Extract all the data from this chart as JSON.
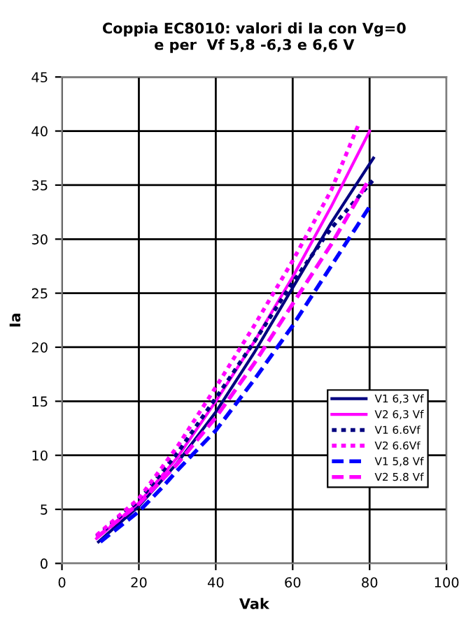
{
  "chart_data": {
    "type": "line",
    "title": "Coppia EC8010: valori di Ia con Vg=0\ne per  Vf 5,8 -6,3 e 6,6 V",
    "xlabel": "Vak",
    "ylabel": "Ia",
    "xlim": [
      0,
      100
    ],
    "xticks": [
      0,
      20,
      40,
      60,
      80,
      100
    ],
    "ylim": [
      0,
      45
    ],
    "yticks": [
      0,
      5,
      10,
      15,
      20,
      25,
      30,
      35,
      40,
      45
    ],
    "grid": true,
    "legend": "lower right",
    "marker": "none",
    "series": [
      {
        "name": "V1 6,3 Vf",
        "color": "#000080",
        "line_style": "solid",
        "x": [
          9.5,
          20,
          30,
          40,
          50,
          60,
          70,
          81
        ],
        "values": [
          2,
          5.3,
          9.3,
          14,
          19.5,
          25.5,
          31.5,
          37.5
        ]
      },
      {
        "name": "V2 6,3 Vf",
        "color": "#ff00ff",
        "line_style": "solid",
        "x": [
          9,
          20,
          30,
          40,
          50,
          60,
          70,
          80
        ],
        "values": [
          2.3,
          5.6,
          9.8,
          15,
          20.5,
          26.5,
          33,
          40
        ]
      },
      {
        "name": "V1 6.6Vf",
        "color": "#000080",
        "line_style": "dotted",
        "x": [
          9,
          20,
          30,
          40,
          50,
          60,
          70,
          81
        ],
        "values": [
          2.5,
          5.8,
          10.2,
          15.3,
          20.5,
          26,
          31,
          35.5
        ]
      },
      {
        "name": "V2 6.6Vf",
        "color": "#ff00ff",
        "line_style": "dotted",
        "x": [
          9,
          20,
          30,
          40,
          50,
          60,
          70,
          77
        ],
        "values": [
          2.6,
          6,
          10.8,
          16.3,
          22,
          28,
          34.5,
          40.5
        ]
      },
      {
        "name": "V1 5,8 Vf",
        "color": "#0000ff",
        "line_style": "dashed",
        "x": [
          10,
          20,
          26,
          30,
          40,
          50,
          60,
          70,
          80
        ],
        "values": [
          2,
          4.8,
          7,
          8.6,
          12.3,
          17,
          22,
          27.5,
          33
        ]
      },
      {
        "name": "V2 5.8 Vf",
        "color": "#ff00ff",
        "line_style": "dashed",
        "x": [
          9,
          20,
          30,
          40,
          50,
          60,
          70,
          79.5
        ],
        "values": [
          2.4,
          5.5,
          9.2,
          13.5,
          18.5,
          24,
          29.5,
          35.3
        ]
      }
    ]
  }
}
